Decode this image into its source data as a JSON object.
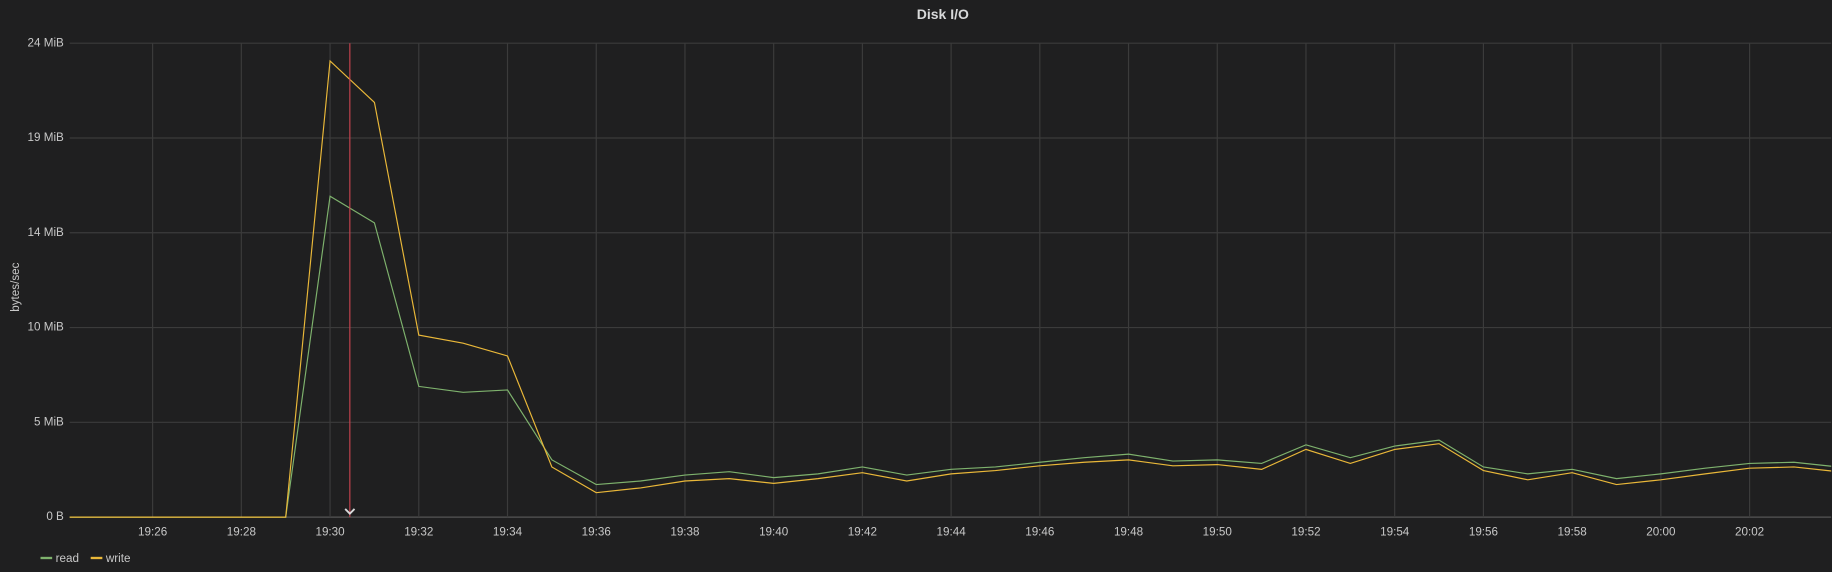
{
  "chart_data": {
    "type": "line",
    "title": "Disk I/O",
    "y_label": "bytes/sec",
    "x": [
      1164,
      1165,
      1166,
      1167,
      1168,
      1169,
      1170,
      1171,
      1172,
      1173,
      1174,
      1175,
      1176,
      1177,
      1178,
      1179,
      1180,
      1181,
      1182,
      1183,
      1184,
      1185,
      1186,
      1187,
      1188,
      1189,
      1190,
      1191,
      1192,
      1193,
      1194,
      1195,
      1196,
      1197,
      1198,
      1199,
      1200,
      1201,
      1202,
      1203,
      1204
    ],
    "series": [
      {
        "name": "read",
        "color": "#7eb26d",
        "values": [
          0,
          0,
          0,
          0,
          0,
          0,
          16.25,
          14.9,
          6.62,
          6.32,
          6.44,
          2.9,
          1.65,
          1.83,
          2.13,
          2.3,
          2.0,
          2.19,
          2.54,
          2.13,
          2.42,
          2.54,
          2.78,
          3.01,
          3.19,
          2.84,
          2.9,
          2.72,
          3.66,
          3.01,
          3.6,
          3.9,
          2.54,
          2.19,
          2.42,
          1.95,
          2.19,
          2.48,
          2.72,
          2.78,
          2.54
        ]
      },
      {
        "name": "write",
        "color": "#eab839",
        "values": [
          0,
          0,
          0,
          0,
          0,
          0,
          23.1,
          21.0,
          9.22,
          8.81,
          8.16,
          2.54,
          1.24,
          1.48,
          1.83,
          1.95,
          1.71,
          1.95,
          2.25,
          1.83,
          2.19,
          2.36,
          2.6,
          2.78,
          2.9,
          2.6,
          2.66,
          2.42,
          3.43,
          2.72,
          3.43,
          3.72,
          2.36,
          1.89,
          2.25,
          1.65,
          1.89,
          2.19,
          2.48,
          2.54,
          2.3
        ]
      }
    ],
    "xlim": [
      1164.13,
      1203.84
    ],
    "xticks": [
      {
        "value": 1166,
        "label": "19:26"
      },
      {
        "value": 1168,
        "label": "19:28"
      },
      {
        "value": 1170,
        "label": "19:30"
      },
      {
        "value": 1172,
        "label": "19:32"
      },
      {
        "value": 1174,
        "label": "19:34"
      },
      {
        "value": 1176,
        "label": "19:36"
      },
      {
        "value": 1178,
        "label": "19:38"
      },
      {
        "value": 1180,
        "label": "19:40"
      },
      {
        "value": 1182,
        "label": "19:42"
      },
      {
        "value": 1184,
        "label": "19:44"
      },
      {
        "value": 1186,
        "label": "19:46"
      },
      {
        "value": 1188,
        "label": "19:48"
      },
      {
        "value": 1190,
        "label": "19:50"
      },
      {
        "value": 1192,
        "label": "19:52"
      },
      {
        "value": 1194,
        "label": "19:54"
      },
      {
        "value": 1196,
        "label": "19:56"
      },
      {
        "value": 1198,
        "label": "19:58"
      },
      {
        "value": 1200,
        "label": "20:00"
      },
      {
        "value": 1202,
        "label": "20:02"
      }
    ],
    "ylim": [
      0,
      24
    ],
    "yticks": [
      {
        "value": 0,
        "label": "0 B"
      },
      {
        "value": 4.8,
        "label": "5 MiB"
      },
      {
        "value": 9.6,
        "label": "10 MiB"
      },
      {
        "value": 14.4,
        "label": "14 MiB"
      },
      {
        "value": 19.2,
        "label": "19 MiB"
      },
      {
        "value": 24,
        "label": "24 MiB"
      }
    ],
    "grid": true,
    "legend": "bottom-left"
  }
}
